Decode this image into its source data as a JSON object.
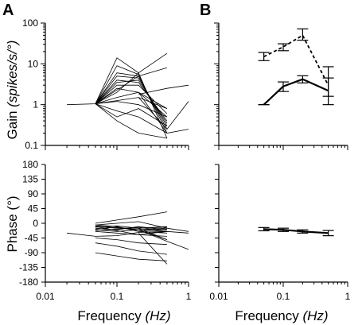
{
  "panel_labels": [
    "A",
    "B"
  ],
  "chart_data": [
    {
      "id": "A_gain",
      "type": "line",
      "panel": "A",
      "ylabel_main": "Gain ",
      "ylabel_unit": "(spikes/s/°)",
      "xscale": "log",
      "yscale": "log",
      "xlim": [
        0.01,
        1
      ],
      "ylim": [
        0.1,
        100
      ],
      "y_ticks": [
        "100",
        "10",
        "1",
        "0.1"
      ],
      "series": [
        {
          "x": [
            0.02,
            0.05,
            0.1,
            0.2,
            0.5
          ],
          "y": [
            1.0,
            1.05,
            14.0,
            6.0,
            0.15
          ]
        },
        {
          "x": [
            0.05,
            0.1,
            0.2,
            0.5
          ],
          "y": [
            1.05,
            9.0,
            5.5,
            0.2
          ]
        },
        {
          "x": [
            0.05,
            0.1,
            0.2,
            0.5
          ],
          "y": [
            1.05,
            6.0,
            5.0,
            0.25
          ]
        },
        {
          "x": [
            0.05,
            0.1,
            0.2,
            0.5
          ],
          "y": [
            1.05,
            5.0,
            4.5,
            0.3
          ]
        },
        {
          "x": [
            0.05,
            0.1,
            0.2,
            0.5
          ],
          "y": [
            1.05,
            4.0,
            3.5,
            0.4
          ]
        },
        {
          "x": [
            0.05,
            0.1,
            0.2,
            0.5
          ],
          "y": [
            1.05,
            3.0,
            3.0,
            0.6
          ]
        },
        {
          "x": [
            0.05,
            0.1,
            0.2,
            0.5
          ],
          "y": [
            1.05,
            2.0,
            6.0,
            18.0
          ]
        },
        {
          "x": [
            0.05,
            0.1,
            0.2,
            0.5
          ],
          "y": [
            1.05,
            1.5,
            2.0,
            0.8
          ]
        },
        {
          "x": [
            0.05,
            0.1,
            0.2,
            0.5
          ],
          "y": [
            1.05,
            1.2,
            1.0,
            0.5
          ]
        },
        {
          "x": [
            0.05,
            0.1,
            0.2,
            0.5
          ],
          "y": [
            1.05,
            0.7,
            0.5,
            0.2
          ]
        },
        {
          "x": [
            0.05,
            0.1,
            0.2,
            0.5
          ],
          "y": [
            1.05,
            0.5,
            0.8,
            0.3
          ]
        },
        {
          "x": [
            0.05,
            0.1,
            0.2,
            0.5
          ],
          "y": [
            1.05,
            0.4,
            0.2,
            0.15
          ]
        },
        {
          "x": [
            0.05,
            0.1,
            0.2,
            0.5
          ],
          "y": [
            1.05,
            3.5,
            4.0,
            0.35
          ]
        },
        {
          "x": [
            0.05,
            0.1,
            0.2,
            0.5
          ],
          "y": [
            1.05,
            2.5,
            2.0,
            0.5
          ]
        },
        {
          "x": [
            0.05,
            0.2,
            0.5
          ],
          "y": [
            1.05,
            5.0,
            8.0
          ]
        },
        {
          "x": [
            0.05,
            0.2,
            0.5
          ],
          "y": [
            1.05,
            1.5,
            0.8
          ]
        },
        {
          "x": [
            0.2,
            0.5,
            1.0
          ],
          "y": [
            1.5,
            0.25,
            1.2
          ]
        },
        {
          "x": [
            0.2,
            0.5,
            1.0
          ],
          "y": [
            1.8,
            2.5,
            3.0
          ]
        },
        {
          "x": [
            0.2,
            0.5,
            1.0
          ],
          "y": [
            2.0,
            0.2,
            0.25
          ]
        }
      ]
    },
    {
      "id": "A_phase",
      "type": "line",
      "panel": "A",
      "xlabel_main": "Frequency ",
      "xlabel_unit": "(Hz)",
      "ylabel": "Phase (°)",
      "xscale": "log",
      "xlim": [
        0.01,
        1
      ],
      "ylim": [
        -180,
        180
      ],
      "y_ticks": [
        "180",
        "135",
        "90",
        "45",
        "0",
        "-45",
        "-90",
        "-135",
        "-180"
      ],
      "x_ticks": [
        "0.01",
        "0.1",
        "1"
      ],
      "series": [
        {
          "x": [
            0.02,
            0.05,
            0.1,
            0.2,
            0.5,
            1.0
          ],
          "y": [
            -30,
            -40,
            -38,
            -28,
            -25,
            -30
          ]
        },
        {
          "x": [
            0.05,
            0.1,
            0.2,
            0.5
          ],
          "y": [
            -5,
            -10,
            -25,
            -30
          ]
        },
        {
          "x": [
            0.05,
            0.1,
            0.2,
            0.5
          ],
          "y": [
            -10,
            -15,
            -15,
            -10
          ]
        },
        {
          "x": [
            0.05,
            0.1,
            0.2,
            0.5
          ],
          "y": [
            -15,
            -20,
            -10,
            -20
          ]
        },
        {
          "x": [
            0.05,
            0.1,
            0.2,
            0.5
          ],
          "y": [
            -20,
            -25,
            -20,
            -25
          ]
        },
        {
          "x": [
            0.05,
            0.1,
            0.2,
            0.5
          ],
          "y": [
            -25,
            -30,
            -35,
            -40
          ]
        },
        {
          "x": [
            0.05,
            0.1,
            0.2,
            0.5
          ],
          "y": [
            -45,
            -50,
            -60,
            -65
          ]
        },
        {
          "x": [
            0.05,
            0.1,
            0.2,
            0.5
          ],
          "y": [
            -60,
            -70,
            -85,
            -95
          ]
        },
        {
          "x": [
            0.05,
            0.1,
            0.2,
            0.5
          ],
          "y": [
            -90,
            -100,
            -110,
            -115
          ]
        },
        {
          "x": [
            0.05,
            0.1,
            0.2,
            0.5
          ],
          "y": [
            -5,
            0,
            5,
            -15
          ]
        },
        {
          "x": [
            0.05,
            0.1,
            0.2,
            0.5
          ],
          "y": [
            0,
            10,
            20,
            35
          ]
        },
        {
          "x": [
            0.05,
            0.1,
            0.2,
            0.5
          ],
          "y": [
            -12,
            -8,
            -15,
            -12
          ]
        },
        {
          "x": [
            0.05,
            0.1,
            0.2,
            0.5
          ],
          "y": [
            -18,
            -12,
            -20,
            -18
          ]
        },
        {
          "x": [
            0.05,
            0.1,
            0.2,
            0.5
          ],
          "y": [
            -22,
            -18,
            -12,
            -25
          ]
        },
        {
          "x": [
            0.05,
            0.2,
            0.5
          ],
          "y": [
            -10,
            -35,
            -25
          ]
        },
        {
          "x": [
            0.05,
            0.2,
            0.5
          ],
          "y": [
            -8,
            -20,
            -50
          ]
        },
        {
          "x": [
            0.2,
            0.5,
            1.0
          ],
          "y": [
            -20,
            -55,
            -80
          ]
        },
        {
          "x": [
            0.2,
            0.5,
            1.0
          ],
          "y": [
            -20,
            -15,
            -25
          ]
        },
        {
          "x": [
            0.2,
            0.5
          ],
          "y": [
            -30,
            -125
          ]
        },
        {
          "x": [
            0.2,
            0.5
          ],
          "y": [
            -15,
            -50
          ]
        }
      ]
    },
    {
      "id": "B_gain",
      "type": "line",
      "panel": "B",
      "xscale": "log",
      "yscale": "log",
      "xlim": [
        0.01,
        1
      ],
      "ylim": [
        0.1,
        100
      ],
      "series": [
        {
          "style": "dashed",
          "x": [
            0.05,
            0.1,
            0.2,
            0.5
          ],
          "y": [
            15,
            26,
            50,
            3.0
          ],
          "err_low": [
            12,
            21,
            38,
            1.6
          ],
          "err_high": [
            19,
            31,
            72,
            8.5
          ]
        },
        {
          "style": "solid",
          "x": [
            0.05,
            0.1,
            0.2,
            0.5
          ],
          "y": [
            1.0,
            2.8,
            4.2,
            2.2
          ],
          "err_low": [
            1.0,
            2.1,
            3.4,
            1.0
          ],
          "err_high": [
            1.0,
            3.6,
            5.1,
            4.5
          ]
        }
      ]
    },
    {
      "id": "B_phase",
      "type": "line",
      "panel": "B",
      "xlabel_main": "Frequency ",
      "xlabel_unit": "(Hz)",
      "xscale": "log",
      "xlim": [
        0.01,
        1
      ],
      "ylim": [
        -180,
        180
      ],
      "x_ticks": [
        "0.01",
        "0.1",
        "1"
      ],
      "series": [
        {
          "style": "solid",
          "x": [
            0.05,
            0.1,
            0.2,
            0.5
          ],
          "y": [
            -18,
            -20,
            -25,
            -30
          ],
          "err_low": [
            -23,
            -25,
            -30,
            -38
          ],
          "err_high": [
            -13,
            -15,
            -20,
            -22
          ]
        }
      ]
    }
  ]
}
